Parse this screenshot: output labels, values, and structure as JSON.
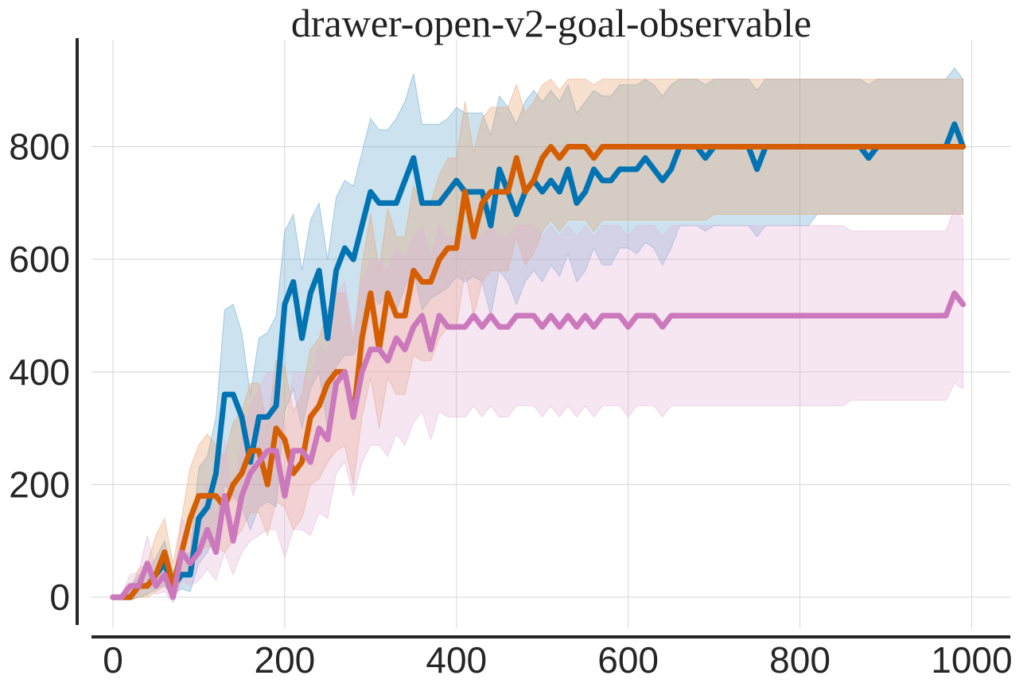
{
  "chart_data": {
    "type": "line",
    "title": "drawer-open-v2-goal-observable",
    "xlabel": "",
    "ylabel": "",
    "xlim": [
      -25,
      1045
    ],
    "ylim": [
      -55,
      990
    ],
    "xticks": [
      0,
      200,
      400,
      600,
      800,
      1000
    ],
    "yticks": [
      0,
      200,
      400,
      600,
      800
    ],
    "xtick_labels": [
      "0",
      "200",
      "400",
      "600",
      "800",
      "1000"
    ],
    "ytick_labels": [
      "0",
      "200",
      "400",
      "600",
      "800"
    ],
    "grid": true,
    "x": [
      0,
      10,
      20,
      30,
      40,
      50,
      60,
      70,
      80,
      90,
      100,
      110,
      120,
      130,
      140,
      150,
      160,
      170,
      180,
      190,
      200,
      210,
      220,
      230,
      240,
      250,
      260,
      270,
      280,
      290,
      300,
      310,
      320,
      330,
      340,
      350,
      360,
      370,
      380,
      390,
      400,
      410,
      420,
      430,
      440,
      450,
      460,
      470,
      480,
      490,
      500,
      510,
      520,
      530,
      540,
      550,
      560,
      570,
      580,
      590,
      600,
      610,
      620,
      630,
      640,
      650,
      660,
      670,
      680,
      690,
      700,
      710,
      720,
      730,
      740,
      750,
      760,
      770,
      780,
      790,
      800,
      810,
      820,
      830,
      840,
      850,
      860,
      870,
      880,
      890,
      900,
      910,
      920,
      930,
      940,
      950,
      960,
      970,
      980,
      990
    ],
    "series": [
      {
        "color": "#0173b2",
        "fill_color": "#5fa4cc",
        "values": [
          0,
          0,
          0,
          20,
          20,
          40,
          60,
          20,
          40,
          40,
          140,
          160,
          220,
          360,
          360,
          320,
          240,
          320,
          320,
          340,
          520,
          560,
          460,
          540,
          580,
          460,
          580,
          620,
          600,
          660,
          720,
          700,
          700,
          700,
          740,
          780,
          700,
          700,
          700,
          720,
          740,
          720,
          720,
          720,
          660,
          760,
          720,
          680,
          720,
          740,
          720,
          740,
          720,
          760,
          700,
          720,
          760,
          740,
          740,
          760,
          760,
          760,
          780,
          760,
          740,
          760,
          800,
          800,
          800,
          780,
          800,
          800,
          800,
          800,
          800,
          760,
          800,
          800,
          800,
          800,
          800,
          800,
          800,
          800,
          800,
          800,
          800,
          800,
          780,
          800,
          800,
          800,
          800,
          800,
          800,
          800,
          800,
          800,
          840,
          800
        ],
        "lower": [
          0,
          0,
          -5,
          0,
          5,
          15,
          20,
          5,
          15,
          10,
          60,
          80,
          110,
          200,
          180,
          160,
          120,
          160,
          170,
          160,
          330,
          370,
          300,
          370,
          400,
          300,
          410,
          430,
          430,
          460,
          540,
          520,
          540,
          510,
          550,
          580,
          510,
          530,
          540,
          550,
          570,
          560,
          570,
          560,
          500,
          580,
          560,
          520,
          560,
          580,
          560,
          590,
          570,
          610,
          560,
          580,
          620,
          590,
          590,
          620,
          620,
          610,
          630,
          620,
          590,
          620,
          660,
          660,
          660,
          650,
          660,
          660,
          660,
          660,
          660,
          640,
          660,
          660,
          660,
          660,
          660,
          660,
          680,
          680,
          680,
          680,
          680,
          680,
          680,
          680,
          680,
          680,
          680,
          680,
          680,
          680,
          680,
          680,
          680,
          680
        ],
        "upper": [
          0,
          5,
          15,
          40,
          45,
          70,
          100,
          45,
          75,
          80,
          230,
          250,
          320,
          510,
          520,
          470,
          360,
          460,
          470,
          500,
          650,
          680,
          580,
          670,
          700,
          600,
          710,
          740,
          730,
          790,
          850,
          830,
          830,
          850,
          880,
          930,
          840,
          840,
          840,
          850,
          870,
          860,
          860,
          860,
          820,
          890,
          870,
          840,
          880,
          900,
          880,
          900,
          880,
          910,
          860,
          880,
          900,
          890,
          890,
          910,
          910,
          910,
          920,
          910,
          890,
          910,
          920,
          920,
          920,
          910,
          920,
          920,
          920,
          920,
          920,
          900,
          920,
          920,
          920,
          920,
          920,
          920,
          920,
          920,
          920,
          920,
          920,
          920,
          910,
          920,
          920,
          920,
          920,
          920,
          920,
          920,
          920,
          920,
          940,
          920
        ]
      },
      {
        "color": "#d55e00",
        "fill_color": "#e8a06a",
        "values": [
          0,
          0,
          0,
          20,
          20,
          40,
          80,
          20,
          80,
          140,
          180,
          180,
          180,
          160,
          200,
          220,
          260,
          260,
          200,
          300,
          280,
          220,
          240,
          320,
          340,
          380,
          400,
          400,
          320,
          460,
          540,
          440,
          540,
          500,
          500,
          580,
          560,
          560,
          600,
          620,
          620,
          720,
          640,
          700,
          720,
          720,
          720,
          780,
          720,
          740,
          780,
          800,
          780,
          800,
          800,
          800,
          780,
          800,
          800,
          800,
          800,
          800,
          800,
          800,
          800,
          800,
          800,
          800,
          800,
          800,
          800,
          800,
          800,
          800,
          800,
          800,
          800,
          800,
          800,
          800,
          800,
          800,
          800,
          800,
          800,
          800,
          800,
          800,
          800,
          800,
          800,
          800,
          800,
          800,
          800,
          800,
          800,
          800,
          800,
          800
        ],
        "lower": [
          0,
          0,
          -5,
          0,
          0,
          10,
          20,
          0,
          30,
          60,
          80,
          90,
          90,
          80,
          100,
          120,
          150,
          150,
          110,
          170,
          160,
          120,
          140,
          200,
          210,
          240,
          260,
          270,
          200,
          320,
          390,
          300,
          390,
          360,
          360,
          430,
          420,
          420,
          460,
          480,
          480,
          580,
          500,
          560,
          580,
          580,
          580,
          640,
          590,
          610,
          650,
          670,
          650,
          670,
          670,
          670,
          650,
          670,
          670,
          670,
          670,
          670,
          670,
          670,
          670,
          670,
          670,
          670,
          670,
          670,
          680,
          680,
          680,
          680,
          680,
          680,
          680,
          680,
          680,
          680,
          680,
          680,
          680,
          680,
          680,
          680,
          680,
          680,
          680,
          680,
          680,
          680,
          680,
          680,
          680,
          680,
          680,
          680,
          680,
          680
        ],
        "upper": [
          0,
          5,
          15,
          50,
          60,
          110,
          140,
          60,
          140,
          230,
          270,
          290,
          270,
          250,
          310,
          330,
          380,
          380,
          300,
          420,
          410,
          330,
          360,
          440,
          460,
          510,
          540,
          540,
          450,
          590,
          680,
          580,
          690,
          640,
          640,
          730,
          700,
          700,
          750,
          780,
          780,
          880,
          790,
          850,
          870,
          870,
          870,
          910,
          860,
          880,
          910,
          920,
          900,
          920,
          920,
          920,
          910,
          920,
          920,
          920,
          920,
          920,
          920,
          920,
          920,
          920,
          920,
          920,
          920,
          920,
          920,
          920,
          920,
          920,
          920,
          920,
          920,
          920,
          920,
          920,
          920,
          920,
          920,
          920,
          920,
          920,
          920,
          920,
          920,
          920,
          920,
          920,
          920,
          920,
          920,
          920,
          920,
          920,
          920,
          920
        ]
      },
      {
        "color": "#cc78bc",
        "fill_color": "#e3b0d8",
        "values": [
          0,
          0,
          20,
          20,
          60,
          20,
          40,
          0,
          80,
          60,
          80,
          120,
          80,
          180,
          100,
          180,
          220,
          240,
          260,
          260,
          180,
          260,
          260,
          240,
          300,
          280,
          380,
          400,
          320,
          400,
          440,
          440,
          420,
          460,
          440,
          480,
          500,
          440,
          500,
          480,
          480,
          480,
          500,
          480,
          500,
          480,
          480,
          500,
          500,
          500,
          480,
          500,
          480,
          500,
          480,
          500,
          480,
          500,
          500,
          500,
          480,
          500,
          500,
          500,
          480,
          500,
          500,
          500,
          500,
          500,
          500,
          500,
          500,
          500,
          500,
          500,
          500,
          500,
          500,
          500,
          500,
          500,
          500,
          500,
          500,
          500,
          500,
          500,
          500,
          500,
          500,
          500,
          500,
          500,
          500,
          500,
          500,
          500,
          540,
          520
        ],
        "lower": [
          0,
          0,
          5,
          5,
          25,
          5,
          10,
          -10,
          30,
          20,
          30,
          50,
          30,
          80,
          40,
          80,
          100,
          110,
          120,
          120,
          70,
          120,
          120,
          110,
          150,
          140,
          220,
          240,
          180,
          240,
          270,
          270,
          250,
          290,
          270,
          310,
          330,
          280,
          330,
          320,
          320,
          320,
          340,
          320,
          340,
          320,
          320,
          340,
          340,
          340,
          320,
          340,
          320,
          340,
          320,
          340,
          320,
          340,
          340,
          340,
          320,
          340,
          340,
          340,
          320,
          340,
          340,
          340,
          340,
          340,
          340,
          340,
          340,
          340,
          340,
          340,
          340,
          340,
          340,
          340,
          340,
          340,
          340,
          340,
          340,
          340,
          350,
          350,
          350,
          350,
          350,
          350,
          350,
          350,
          350,
          350,
          350,
          350,
          380,
          370
        ],
        "upper": [
          0,
          5,
          40,
          45,
          110,
          45,
          80,
          20,
          140,
          110,
          140,
          200,
          140,
          280,
          170,
          280,
          340,
          370,
          400,
          400,
          290,
          400,
          400,
          380,
          450,
          430,
          540,
          560,
          470,
          560,
          600,
          600,
          580,
          620,
          600,
          640,
          660,
          600,
          660,
          640,
          640,
          640,
          660,
          640,
          660,
          640,
          640,
          660,
          660,
          660,
          640,
          660,
          640,
          660,
          640,
          660,
          640,
          660,
          660,
          660,
          640,
          660,
          660,
          660,
          640,
          660,
          660,
          660,
          660,
          660,
          660,
          660,
          660,
          660,
          660,
          660,
          660,
          660,
          660,
          660,
          660,
          660,
          660,
          660,
          660,
          660,
          650,
          650,
          650,
          650,
          650,
          650,
          650,
          650,
          650,
          650,
          650,
          650,
          690,
          670
        ]
      }
    ]
  }
}
